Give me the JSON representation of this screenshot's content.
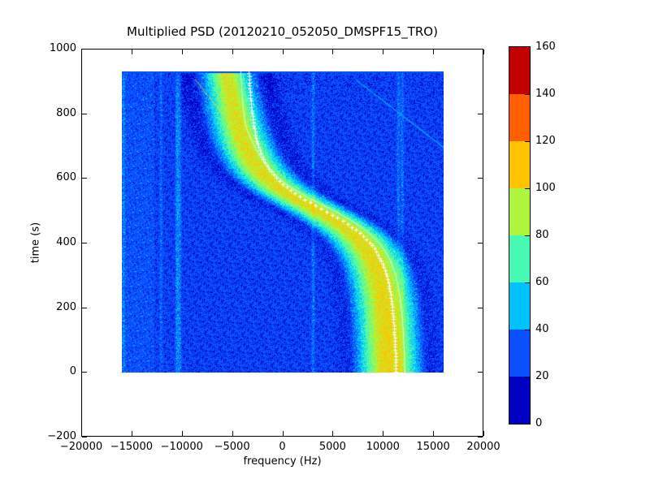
{
  "figure": {
    "title": "Multiplied PSD (20120210_052050_DMSPF15_TRO)",
    "xlabel": "frequency (Hz)",
    "ylabel": "time (s)",
    "background_color": "#ffffff"
  },
  "chart_data": {
    "type": "heatmap",
    "title": "Multiplied PSD (20120210_052050_DMSPF15_TRO)",
    "xlabel": "frequency (Hz)",
    "ylabel": "time (s)",
    "xlim": [
      -20000,
      20000
    ],
    "ylim": [
      -200,
      1000
    ],
    "grid": false,
    "xticks": {
      "values": [
        -20000,
        -15000,
        -10000,
        -5000,
        0,
        5000,
        10000,
        15000,
        20000
      ],
      "labels": [
        "−20000",
        "−15000",
        "−10000",
        "−5000",
        "0",
        "5000",
        "10000",
        "15000",
        "20000"
      ]
    },
    "yticks": {
      "values": [
        1000,
        800,
        600,
        400,
        200,
        0,
        -200
      ],
      "labels": [
        "1000",
        "800",
        "600",
        "400",
        "200",
        "0",
        "−200"
      ]
    },
    "image_extent": {
      "freq_min_hz": -16000,
      "freq_max_hz": 16000,
      "time_min_s": 0,
      "time_max_s": 930
    },
    "colorbar": {
      "vmin": 0,
      "vmax": 160,
      "n_levels": 8,
      "tick_values": [
        0,
        20,
        40,
        60,
        80,
        100,
        120,
        140,
        160
      ],
      "tick_labels": [
        "0",
        "20",
        "40",
        "60",
        "80",
        "100",
        "120",
        "140",
        "160"
      ],
      "segment_colors_bottom_to_top": [
        "#0000c4",
        "#0a50ff",
        "#00c2ff",
        "#46fab4",
        "#aff53c",
        "#ffc400",
        "#ff5f00",
        "#c30000"
      ]
    },
    "background_noise": {
      "base_level": 29,
      "noise_span": 24,
      "left_bright_region_max_freq_hz": -12800,
      "left_bright_base_level": 32.5
    },
    "doppler_track": {
      "model": "f(t) = f_mid - amp*(t-t0)/sqrt(tau^2 + (t-t0)^2)",
      "f_mid_hz": 3900,
      "amp_hz": 7600,
      "t0_s": 505,
      "tau_s": 130,
      "marker_style": "white dotted plus markers",
      "samples_t_f": [
        [
          0,
          11260
        ],
        [
          100,
          11140
        ],
        [
          200,
          10890
        ],
        [
          300,
          10320
        ],
        [
          400,
          8680
        ],
        [
          450,
          6860
        ],
        [
          500,
          4190
        ],
        [
          550,
          1420
        ],
        [
          600,
          -590
        ],
        [
          650,
          -1760
        ],
        [
          700,
          -2420
        ],
        [
          800,
          -3050
        ],
        [
          930,
          -3370
        ]
      ]
    },
    "signal_band": {
      "peak_above_base": 80,
      "peak_taper_with_time": 8,
      "sigma_hz_bottom": 1900,
      "sigma_hz_top": 1400,
      "center_offset_from_track_hz_bottom": -700,
      "center_offset_from_track_hz_top": -2200,
      "dark_ring_depth": 13,
      "dark_ring_radius_hz": 3900,
      "dark_ring_sigma_hz": 750
    },
    "interference": {
      "vertical_lines": [
        {
          "freq_hz": -15850,
          "amp": 8
        },
        {
          "freq_hz": -12100,
          "amp": 7
        },
        {
          "freq_hz": -10500,
          "amp": 14
        },
        {
          "freq_hz": -10250,
          "amp": 10
        },
        {
          "freq_hz": 3030,
          "amp": 9
        },
        {
          "freq_hz": 11500,
          "amp": 8
        },
        {
          "freq_hz": 11900,
          "amp": 8
        }
      ],
      "diagonal_lines": [
        {
          "from_f_t": [
            7300,
            904
          ],
          "to_f_t": [
            16200,
            690
          ],
          "color": "rgba(0,195,255,0.9)"
        },
        {
          "from_f_t": [
            -8700,
            905
          ],
          "to_f_t": [
            -3900,
            715
          ],
          "color": "rgba(255,215,0,0.5)"
        }
      ],
      "secondary_track_line": {
        "offset_hz_at_low_t": 900,
        "offset_hz_at_high_t": -800,
        "color": "rgba(222,255,255,0.85)"
      }
    }
  }
}
